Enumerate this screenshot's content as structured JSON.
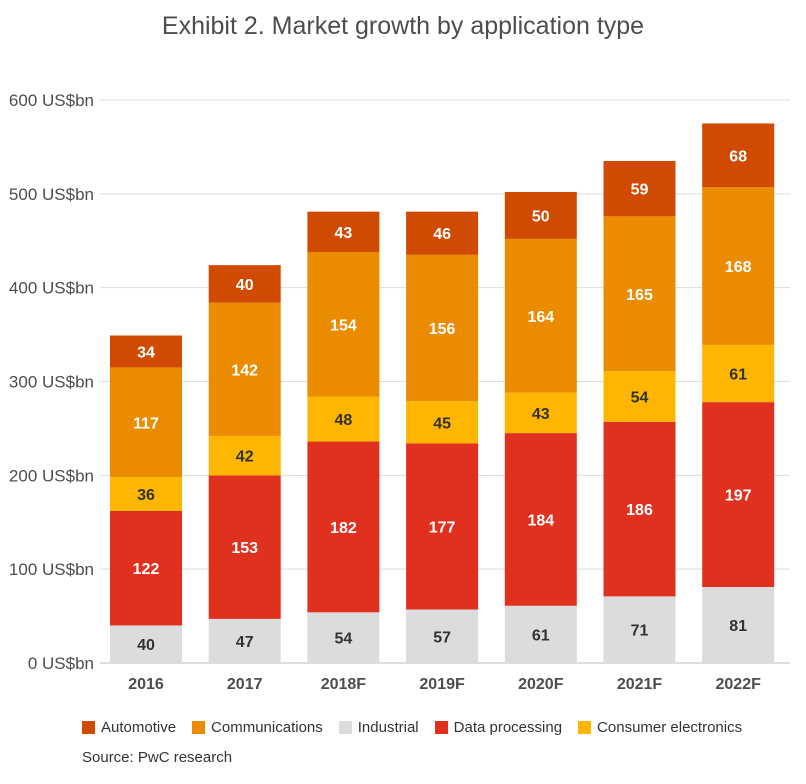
{
  "chart_data": {
    "type": "bar",
    "stacked": true,
    "title": "Exhibit 2. Market growth by application type",
    "source": "Source: PwC research",
    "categories": [
      "2016",
      "2017",
      "2018F",
      "2019F",
      "2020F",
      "2021F",
      "2022F"
    ],
    "ylim": [
      0,
      600
    ],
    "yticks": [
      {
        "value": 0,
        "label": "0 US$bn"
      },
      {
        "value": 100,
        "label": "100 US$bn"
      },
      {
        "value": 200,
        "label": "200 US$bn"
      },
      {
        "value": 300,
        "label": "300 US$bn"
      },
      {
        "value": 400,
        "label": "400 US$bn"
      },
      {
        "value": 500,
        "label": "500 US$bn"
      },
      {
        "value": 600,
        "label": "600 US$bn"
      }
    ],
    "grid": true,
    "legend_position": "bottom",
    "series": [
      {
        "name": "Industrial",
        "key": "industrial",
        "color": "#dcdcdc",
        "label_color": "#333333",
        "values": [
          40,
          47,
          54,
          57,
          61,
          71,
          81
        ]
      },
      {
        "name": "Data processing",
        "key": "data-processing",
        "color": "#e0301e",
        "label_color": "#ffffff",
        "values": [
          122,
          153,
          182,
          177,
          184,
          186,
          197
        ]
      },
      {
        "name": "Consumer electronics",
        "key": "consumer-electronics",
        "color": "#ffb600",
        "label_color": "#333333",
        "values": [
          36,
          42,
          48,
          45,
          43,
          54,
          61
        ]
      },
      {
        "name": "Communications",
        "key": "communications",
        "color": "#eb8c00",
        "label_color": "#ffffff",
        "values": [
          117,
          142,
          154,
          156,
          164,
          165,
          168
        ]
      },
      {
        "name": "Automotive",
        "key": "automotive",
        "color": "#d04a02",
        "label_color": "#ffffff",
        "values": [
          34,
          40,
          43,
          46,
          50,
          59,
          68
        ]
      }
    ],
    "legend_order": [
      "automotive",
      "communications",
      "industrial",
      "data-processing",
      "consumer-electronics"
    ]
  }
}
